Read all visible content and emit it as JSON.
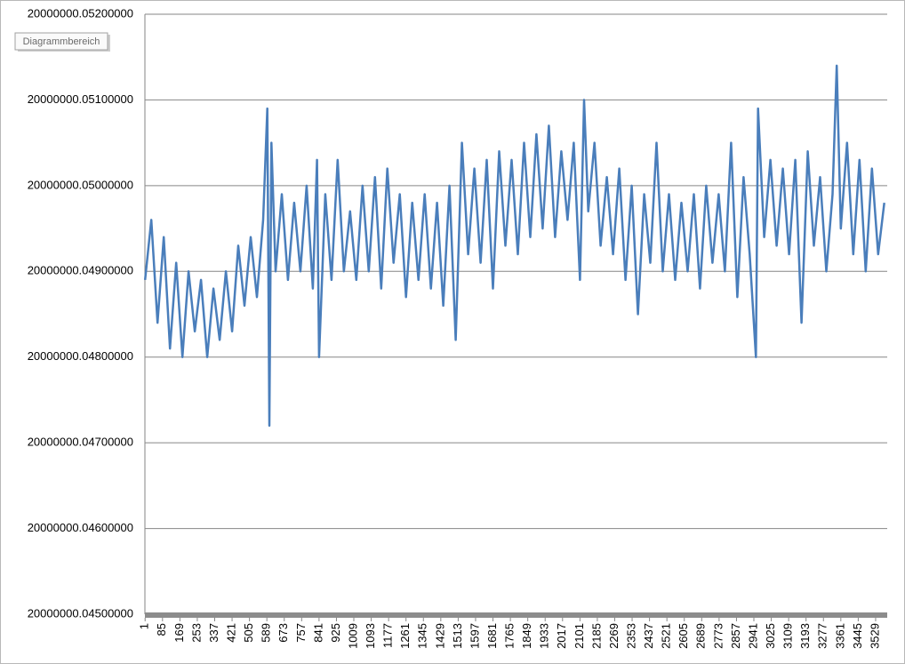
{
  "chart_data": {
    "type": "line",
    "tooltip": "Diagrammbereich",
    "color": "#4a7ebb",
    "grid": true,
    "x": [
      1,
      31,
      61,
      91,
      121,
      151,
      181,
      211,
      241,
      271,
      301,
      331,
      361,
      391,
      421,
      451,
      481,
      511,
      541,
      571,
      591,
      601,
      611,
      631,
      661,
      691,
      721,
      751,
      781,
      811,
      831,
      841,
      871,
      901,
      931,
      961,
      991,
      1021,
      1051,
      1081,
      1111,
      1141,
      1171,
      1201,
      1231,
      1261,
      1291,
      1321,
      1351,
      1381,
      1411,
      1441,
      1471,
      1501,
      1531,
      1561,
      1591,
      1621,
      1651,
      1681,
      1711,
      1741,
      1771,
      1801,
      1831,
      1861,
      1891,
      1921,
      1951,
      1981,
      2011,
      2041,
      2071,
      2101,
      2121,
      2141,
      2171,
      2201,
      2231,
      2261,
      2291,
      2321,
      2351,
      2381,
      2411,
      2441,
      2471,
      2501,
      2531,
      2561,
      2591,
      2621,
      2651,
      2681,
      2711,
      2741,
      2771,
      2801,
      2831,
      2861,
      2891,
      2921,
      2951,
      2961,
      2991,
      3021,
      3051,
      3081,
      3111,
      3141,
      3171,
      3201,
      3231,
      3261,
      3291,
      3321,
      3341,
      3361,
      3391,
      3421,
      3451,
      3481,
      3511,
      3541,
      3571
    ],
    "values": [
      20000000.0489,
      20000000.0496,
      20000000.0484,
      20000000.0494,
      20000000.0481,
      20000000.0491,
      20000000.048,
      20000000.049,
      20000000.0483,
      20000000.0489,
      20000000.048,
      20000000.0488,
      20000000.0482,
      20000000.049,
      20000000.0483,
      20000000.0493,
      20000000.0486,
      20000000.0494,
      20000000.0487,
      20000000.0496,
      20000000.0509,
      20000000.0472,
      20000000.0505,
      20000000.049,
      20000000.0499,
      20000000.0489,
      20000000.0498,
      20000000.049,
      20000000.05,
      20000000.0488,
      20000000.0503,
      20000000.048,
      20000000.0499,
      20000000.0489,
      20000000.0503,
      20000000.049,
      20000000.0497,
      20000000.0489,
      20000000.05,
      20000000.049,
      20000000.0501,
      20000000.0488,
      20000000.0502,
      20000000.0491,
      20000000.0499,
      20000000.0487,
      20000000.0498,
      20000000.0489,
      20000000.0499,
      20000000.0488,
      20000000.0498,
      20000000.0486,
      20000000.05,
      20000000.0482,
      20000000.0505,
      20000000.0492,
      20000000.0502,
      20000000.0491,
      20000000.0503,
      20000000.0488,
      20000000.0504,
      20000000.0493,
      20000000.0503,
      20000000.0492,
      20000000.0505,
      20000000.0494,
      20000000.0506,
      20000000.0495,
      20000000.0507,
      20000000.0494,
      20000000.0504,
      20000000.0496,
      20000000.0505,
      20000000.0489,
      20000000.051,
      20000000.0497,
      20000000.0505,
      20000000.0493,
      20000000.0501,
      20000000.0492,
      20000000.0502,
      20000000.0489,
      20000000.05,
      20000000.0485,
      20000000.0499,
      20000000.0491,
      20000000.0505,
      20000000.049,
      20000000.0499,
      20000000.0489,
      20000000.0498,
      20000000.049,
      20000000.0499,
      20000000.0488,
      20000000.05,
      20000000.0491,
      20000000.0499,
      20000000.049,
      20000000.0505,
      20000000.0487,
      20000000.0501,
      20000000.0492,
      20000000.048,
      20000000.0509,
      20000000.0494,
      20000000.0503,
      20000000.0493,
      20000000.0502,
      20000000.0492,
      20000000.0503,
      20000000.0484,
      20000000.0504,
      20000000.0493,
      20000000.0501,
      20000000.049,
      20000000.0499,
      20000000.0514,
      20000000.0495,
      20000000.0505,
      20000000.0492,
      20000000.0503,
      20000000.049,
      20000000.0502,
      20000000.0492,
      20000000.0498
    ],
    "xlim": [
      0,
      3585
    ],
    "xticks": [
      1,
      85,
      169,
      253,
      337,
      421,
      505,
      589,
      673,
      757,
      841,
      925,
      1009,
      1093,
      1177,
      1261,
      1345,
      1429,
      1513,
      1597,
      1681,
      1765,
      1849,
      1933,
      2017,
      2101,
      2185,
      2269,
      2353,
      2437,
      2521,
      2605,
      2689,
      2773,
      2857,
      2941,
      3025,
      3109,
      3193,
      3277,
      3361,
      3445,
      3529
    ],
    "ylim": [
      20000000.045,
      20000000.052
    ],
    "yticks": [
      {
        "value": 20000000.045,
        "label": "20000000.04500000"
      },
      {
        "value": 20000000.046,
        "label": "20000000.04600000"
      },
      {
        "value": 20000000.047,
        "label": "20000000.04700000"
      },
      {
        "value": 20000000.048,
        "label": "20000000.04800000"
      },
      {
        "value": 20000000.049,
        "label": "20000000.04900000"
      },
      {
        "value": 20000000.05,
        "label": "20000000.05000000"
      },
      {
        "value": 20000000.051,
        "label": "20000000.05100000"
      },
      {
        "value": 20000000.052,
        "label": "20000000.05200000"
      }
    ]
  }
}
